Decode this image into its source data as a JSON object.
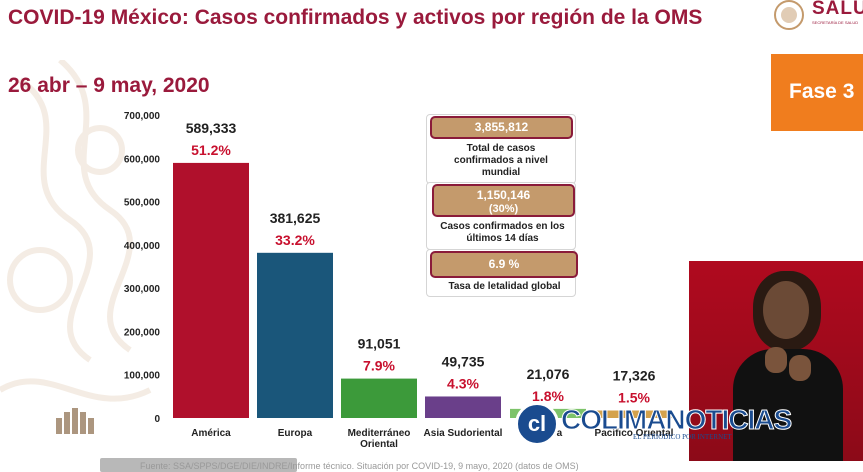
{
  "header": {
    "title": "COVID-19 México: Casos confirmados y activos por región de la OMS",
    "date_range": "26 abr – 9 may, 2020"
  },
  "logo": {
    "text": "SALU",
    "subtext": "SECRETARÍA DE SALUD"
  },
  "phase_badge": {
    "label": "Fase 3"
  },
  "summary": {
    "total_value": "3,855,812",
    "total_label": "Total de casos confirmados a nivel mundial",
    "recent_value": "1,150,146",
    "recent_pct": "(30%)",
    "recent_label": "Casos confirmados en los últimos 14 días",
    "lethality_value": "6.9 %",
    "lethality_label": "Tasa de letalidad global"
  },
  "watermark": {
    "initials": "cl",
    "text": "COLIMANOTICIAS",
    "subtext": "EL PERIÓDICO POR INTERNET"
  },
  "footer": {
    "text": "Fuente: SSA/SPPS/DGE/DIE/INDRE/Informe técnico. Situación por COVID-19, 9 mayo, 2020 (datos de OMS)"
  },
  "chart_data": {
    "type": "bar",
    "title": "",
    "xlabel": "",
    "ylabel": "",
    "ylim": [
      0,
      700000
    ],
    "yticks": [
      0,
      100000,
      200000,
      300000,
      400000,
      500000,
      600000,
      700000
    ],
    "ytick_labels": [
      "0",
      "100,000",
      "200,000",
      "300,000",
      "400,000",
      "500,000",
      "600,000",
      "700,000"
    ],
    "grid": false,
    "categories": [
      "América",
      "Europa",
      "Mediterráneo Oriental",
      "Asia Sudoriental",
      "África",
      "Pacífico Oriental"
    ],
    "values": [
      589333,
      381625,
      91051,
      49735,
      21076,
      17326
    ],
    "value_labels": [
      "589,333",
      "381,625",
      "91,051",
      "49,735",
      "21,076",
      "17,326"
    ],
    "pct_labels": [
      "51.2%",
      "33.2%",
      "7.9%",
      "4.3%",
      "1.8%",
      "1.5%"
    ],
    "colors": [
      "#b0102c",
      "#1a567a",
      "#3c9a3a",
      "#6a3f8a",
      "#7dc36a",
      "#d4a24c"
    ]
  }
}
